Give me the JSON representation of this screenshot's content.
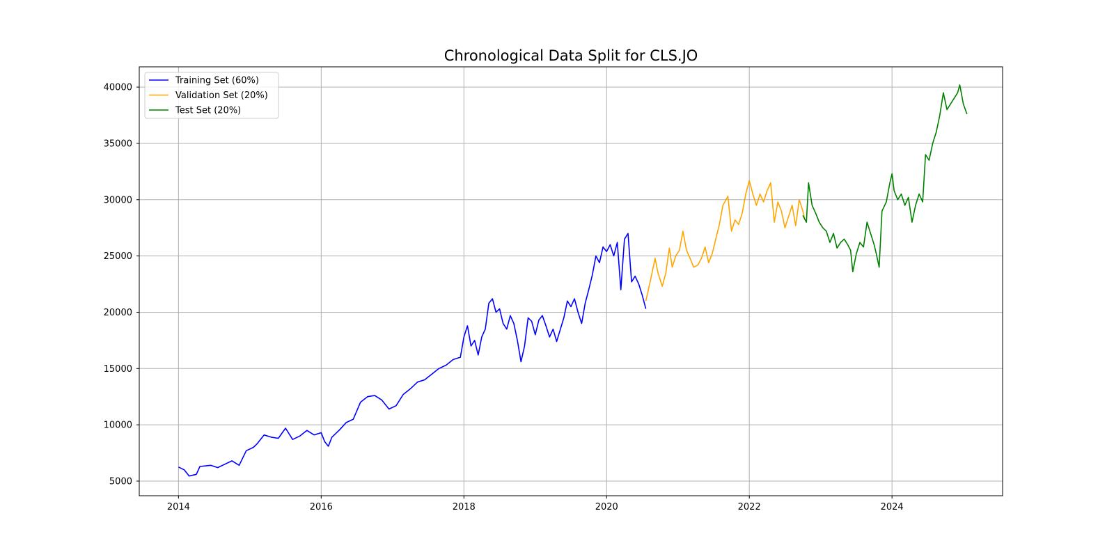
{
  "chart_data": {
    "type": "line",
    "title": "Chronological Data Split for CLS.JO",
    "xlabel": "",
    "ylabel": "",
    "x_range": [
      "2013-06-14",
      "2025-07-21"
    ],
    "xlim": [
      2013.45,
      2025.55
    ],
    "ylim": [
      3700,
      41800
    ],
    "x_ticks": [
      2014,
      2016,
      2018,
      2020,
      2022,
      2024
    ],
    "x_tick_labels": [
      "2014",
      "2016",
      "2018",
      "2020",
      "2022",
      "2024"
    ],
    "y_ticks": [
      5000,
      10000,
      15000,
      20000,
      25000,
      30000,
      35000,
      40000
    ],
    "y_tick_labels": [
      "5000",
      "10000",
      "15000",
      "20000",
      "25000",
      "30000",
      "35000",
      "40000"
    ],
    "grid": true,
    "legend_position": "top-left",
    "series": [
      {
        "name": "Training Set (60%)",
        "color": "#0000ff",
        "points": [
          [
            2014.0,
            6250
          ],
          [
            2014.08,
            6000
          ],
          [
            2014.15,
            5450
          ],
          [
            2014.25,
            5600
          ],
          [
            2014.3,
            6300
          ],
          [
            2014.45,
            6400
          ],
          [
            2014.55,
            6200
          ],
          [
            2014.65,
            6500
          ],
          [
            2014.75,
            6800
          ],
          [
            2014.85,
            6400
          ],
          [
            2014.95,
            7700
          ],
          [
            2015.05,
            8000
          ],
          [
            2015.1,
            8300
          ],
          [
            2015.2,
            9100
          ],
          [
            2015.3,
            8900
          ],
          [
            2015.4,
            8800
          ],
          [
            2015.5,
            9700
          ],
          [
            2015.6,
            8700
          ],
          [
            2015.7,
            9000
          ],
          [
            2015.8,
            9500
          ],
          [
            2015.9,
            9100
          ],
          [
            2016.0,
            9300
          ],
          [
            2016.05,
            8500
          ],
          [
            2016.1,
            8100
          ],
          [
            2016.15,
            8900
          ],
          [
            2016.25,
            9500
          ],
          [
            2016.35,
            10200
          ],
          [
            2016.45,
            10500
          ],
          [
            2016.55,
            12000
          ],
          [
            2016.65,
            12500
          ],
          [
            2016.75,
            12600
          ],
          [
            2016.85,
            12200
          ],
          [
            2016.95,
            11400
          ],
          [
            2017.05,
            11700
          ],
          [
            2017.15,
            12700
          ],
          [
            2017.25,
            13200
          ],
          [
            2017.35,
            13800
          ],
          [
            2017.45,
            14000
          ],
          [
            2017.55,
            14500
          ],
          [
            2017.65,
            15000
          ],
          [
            2017.75,
            15300
          ],
          [
            2017.85,
            15800
          ],
          [
            2017.95,
            16000
          ],
          [
            2018.0,
            17800
          ],
          [
            2018.05,
            18800
          ],
          [
            2018.1,
            17000
          ],
          [
            2018.15,
            17500
          ],
          [
            2018.2,
            16200
          ],
          [
            2018.25,
            17800
          ],
          [
            2018.3,
            18500
          ],
          [
            2018.35,
            20800
          ],
          [
            2018.4,
            21200
          ],
          [
            2018.45,
            20000
          ],
          [
            2018.5,
            20300
          ],
          [
            2018.55,
            19000
          ],
          [
            2018.6,
            18500
          ],
          [
            2018.65,
            19700
          ],
          [
            2018.7,
            19000
          ],
          [
            2018.75,
            17500
          ],
          [
            2018.8,
            15600
          ],
          [
            2018.85,
            17000
          ],
          [
            2018.9,
            19500
          ],
          [
            2018.95,
            19200
          ],
          [
            2019.0,
            18000
          ],
          [
            2019.05,
            19300
          ],
          [
            2019.1,
            19700
          ],
          [
            2019.15,
            18800
          ],
          [
            2019.2,
            17800
          ],
          [
            2019.25,
            18500
          ],
          [
            2019.3,
            17400
          ],
          [
            2019.4,
            19500
          ],
          [
            2019.45,
            21000
          ],
          [
            2019.5,
            20500
          ],
          [
            2019.55,
            21200
          ],
          [
            2019.6,
            20000
          ],
          [
            2019.65,
            19000
          ],
          [
            2019.7,
            20800
          ],
          [
            2019.75,
            22000
          ],
          [
            2019.8,
            23300
          ],
          [
            2019.85,
            25000
          ],
          [
            2019.9,
            24400
          ],
          [
            2019.95,
            25800
          ],
          [
            2020.0,
            25400
          ],
          [
            2020.05,
            26000
          ],
          [
            2020.1,
            25000
          ],
          [
            2020.15,
            26200
          ],
          [
            2020.2,
            22000
          ],
          [
            2020.25,
            26500
          ],
          [
            2020.3,
            27000
          ],
          [
            2020.35,
            22700
          ],
          [
            2020.4,
            23200
          ],
          [
            2020.45,
            22500
          ],
          [
            2020.5,
            21500
          ],
          [
            2020.55,
            20300
          ]
        ]
      },
      {
        "name": "Validation Set (20%)",
        "color": "#ffa500",
        "points": [
          [
            2020.55,
            21000
          ],
          [
            2020.62,
            23000
          ],
          [
            2020.68,
            24800
          ],
          [
            2020.72,
            23500
          ],
          [
            2020.78,
            22300
          ],
          [
            2020.83,
            23500
          ],
          [
            2020.88,
            25700
          ],
          [
            2020.92,
            24000
          ],
          [
            2020.97,
            25000
          ],
          [
            2021.02,
            25500
          ],
          [
            2021.07,
            27200
          ],
          [
            2021.12,
            25500
          ],
          [
            2021.17,
            24800
          ],
          [
            2021.22,
            24000
          ],
          [
            2021.28,
            24200
          ],
          [
            2021.33,
            24800
          ],
          [
            2021.38,
            25800
          ],
          [
            2021.43,
            24400
          ],
          [
            2021.48,
            25200
          ],
          [
            2021.53,
            26500
          ],
          [
            2021.58,
            27800
          ],
          [
            2021.63,
            29500
          ],
          [
            2021.7,
            30300
          ],
          [
            2021.75,
            27200
          ],
          [
            2021.8,
            28200
          ],
          [
            2021.85,
            27800
          ],
          [
            2021.9,
            28800
          ],
          [
            2021.95,
            30500
          ],
          [
            2022.0,
            31700
          ],
          [
            2022.05,
            30500
          ],
          [
            2022.1,
            29500
          ],
          [
            2022.15,
            30500
          ],
          [
            2022.2,
            29800
          ],
          [
            2022.25,
            30800
          ],
          [
            2022.3,
            31500
          ],
          [
            2022.35,
            28000
          ],
          [
            2022.4,
            29800
          ],
          [
            2022.45,
            29000
          ],
          [
            2022.5,
            27500
          ],
          [
            2022.55,
            28500
          ],
          [
            2022.6,
            29500
          ],
          [
            2022.65,
            27700
          ],
          [
            2022.7,
            30000
          ],
          [
            2022.75,
            29000
          ],
          [
            2022.78,
            28200
          ]
        ]
      },
      {
        "name": "Test Set (20%)",
        "color": "#008000",
        "points": [
          [
            2022.75,
            28600
          ],
          [
            2022.8,
            28000
          ],
          [
            2022.83,
            31500
          ],
          [
            2022.88,
            29500
          ],
          [
            2022.93,
            28800
          ],
          [
            2022.98,
            28000
          ],
          [
            2023.03,
            27500
          ],
          [
            2023.08,
            27200
          ],
          [
            2023.13,
            26200
          ],
          [
            2023.18,
            27000
          ],
          [
            2023.23,
            25700
          ],
          [
            2023.28,
            26200
          ],
          [
            2023.33,
            26500
          ],
          [
            2023.38,
            26000
          ],
          [
            2023.42,
            25500
          ],
          [
            2023.45,
            23600
          ],
          [
            2023.5,
            25200
          ],
          [
            2023.55,
            26200
          ],
          [
            2023.6,
            25800
          ],
          [
            2023.65,
            28000
          ],
          [
            2023.7,
            27000
          ],
          [
            2023.75,
            26000
          ],
          [
            2023.78,
            25200
          ],
          [
            2023.82,
            24000
          ],
          [
            2023.86,
            29000
          ],
          [
            2023.92,
            29800
          ],
          [
            2023.97,
            31500
          ],
          [
            2024.0,
            32300
          ],
          [
            2024.03,
            30800
          ],
          [
            2024.08,
            30000
          ],
          [
            2024.13,
            30500
          ],
          [
            2024.18,
            29500
          ],
          [
            2024.23,
            30200
          ],
          [
            2024.28,
            28000
          ],
          [
            2024.33,
            29500
          ],
          [
            2024.38,
            30500
          ],
          [
            2024.43,
            29800
          ],
          [
            2024.47,
            34000
          ],
          [
            2024.52,
            33500
          ],
          [
            2024.57,
            35000
          ],
          [
            2024.62,
            36000
          ],
          [
            2024.67,
            37500
          ],
          [
            2024.72,
            39500
          ],
          [
            2024.77,
            38000
          ],
          [
            2024.82,
            38500
          ],
          [
            2024.87,
            39000
          ],
          [
            2024.92,
            39500
          ],
          [
            2024.95,
            40200
          ],
          [
            2025.0,
            38500
          ],
          [
            2025.05,
            37600
          ]
        ]
      }
    ]
  }
}
